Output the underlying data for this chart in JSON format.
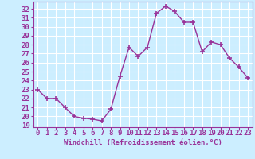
{
  "x": [
    0,
    1,
    2,
    3,
    4,
    5,
    6,
    7,
    8,
    9,
    10,
    11,
    12,
    13,
    14,
    15,
    16,
    17,
    18,
    19,
    20,
    21,
    22,
    23
  ],
  "y": [
    23.0,
    22.0,
    22.0,
    21.0,
    20.0,
    19.8,
    19.7,
    19.5,
    20.8,
    24.5,
    27.7,
    26.7,
    27.7,
    31.5,
    32.3,
    31.7,
    30.5,
    30.5,
    27.2,
    28.3,
    28.0,
    26.5,
    25.5,
    24.3
  ],
  "line_color": "#993399",
  "marker": "+",
  "marker_color": "#993399",
  "bg_color": "#cceeff",
  "grid_color": "#ffffff",
  "xlabel": "Windchill (Refroidissement éolien,°C)",
  "xlabel_color": "#993399",
  "tick_color": "#993399",
  "spine_color": "#993399",
  "ylim": [
    18.8,
    32.8
  ],
  "xlim": [
    -0.5,
    23.5
  ],
  "yticks": [
    19,
    20,
    21,
    22,
    23,
    24,
    25,
    26,
    27,
    28,
    29,
    30,
    31,
    32
  ],
  "xticks": [
    0,
    1,
    2,
    3,
    4,
    5,
    6,
    7,
    8,
    9,
    10,
    11,
    12,
    13,
    14,
    15,
    16,
    17,
    18,
    19,
    20,
    21,
    22,
    23
  ],
  "font_size": 6.5,
  "marker_size": 5,
  "line_width": 1.0
}
